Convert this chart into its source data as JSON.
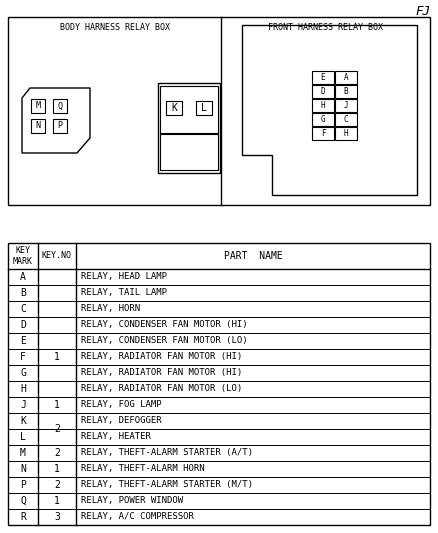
{
  "title_right": "FJ",
  "box1_title": "BODY HARNESS RELAY BOX",
  "box2_title": "FRONT HARNESS RELAY BOX",
  "rows": [
    {
      "mark": "A",
      "part": "RELAY, HEAD LAMP"
    },
    {
      "mark": "B",
      "part": "RELAY, TAIL LAMP"
    },
    {
      "mark": "C",
      "part": "RELAY, HORN"
    },
    {
      "mark": "D",
      "part": "RELAY, CONDENSER FAN MOTOR (HI)"
    },
    {
      "mark": "E",
      "part": "RELAY, CONDENSER FAN MOTOR (LO)"
    },
    {
      "mark": "F",
      "part": "RELAY, RADIATOR FAN MOTOR (HI)"
    },
    {
      "mark": "G",
      "part": "RELAY, RADIATOR FAN MOTOR (HI)"
    },
    {
      "mark": "H",
      "part": "RELAY, RADIATOR FAN MOTOR (LO)"
    },
    {
      "mark": "J",
      "part": "RELAY, FOG LAMP"
    },
    {
      "mark": "K",
      "part": "RELAY, DEFOGGER"
    },
    {
      "mark": "L",
      "part": "RELAY, HEATER"
    },
    {
      "mark": "M",
      "part": "RELAY, THEFT-ALARM STARTER (A/T)"
    },
    {
      "mark": "N",
      "part": "RELAY, THEFT-ALARM HORN"
    },
    {
      "mark": "P",
      "part": "RELAY, THEFT-ALARM STARTER (M/T)"
    },
    {
      "mark": "Q",
      "part": "RELAY, POWER WINDOW"
    },
    {
      "mark": "R",
      "part": "RELAY, A/C COMPRESSOR"
    }
  ],
  "key_no_entries": [
    {
      "key_no": "1",
      "rows": [
        3,
        4,
        5,
        6,
        7
      ]
    },
    {
      "key_no": "1",
      "rows": [
        8
      ]
    },
    {
      "key_no": "2",
      "rows": [
        9,
        10
      ]
    },
    {
      "key_no": "2",
      "rows": [
        11
      ]
    },
    {
      "key_no": "1",
      "rows": [
        12
      ]
    },
    {
      "key_no": "2",
      "rows": [
        13
      ]
    },
    {
      "key_no": "1",
      "rows": [
        14
      ]
    },
    {
      "key_no": "3",
      "rows": [
        15
      ]
    }
  ],
  "front_labels": [
    "F",
    "H",
    "G",
    "C",
    "H",
    "J",
    "D",
    "B",
    "E",
    "A"
  ],
  "body_labels": [
    "M",
    "Q",
    "N",
    "P"
  ],
  "body_kl": [
    "K",
    "L"
  ],
  "bg_color": "#ffffff",
  "line_color": "#000000"
}
